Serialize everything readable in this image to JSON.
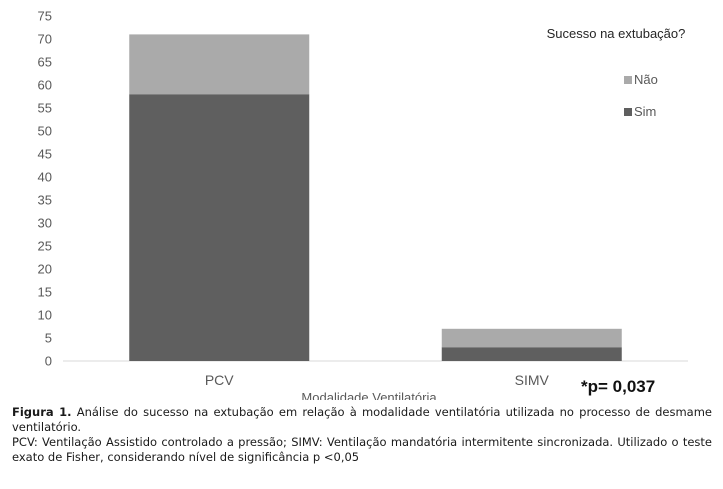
{
  "chart_data": {
    "type": "bar",
    "stacked": true,
    "categories": [
      "PCV",
      "SIMV"
    ],
    "series": [
      {
        "name": "Sim",
        "values": [
          58,
          3
        ],
        "color": "#5f5f5f"
      },
      {
        "name": "Não",
        "values": [
          13,
          4
        ],
        "color": "#aaaaaa"
      }
    ],
    "xlabel": "Modalidade Ventilatória",
    "ylabel": "",
    "ylim": [
      0,
      75
    ],
    "yticks": [
      0,
      5,
      10,
      15,
      20,
      25,
      30,
      35,
      40,
      45,
      50,
      55,
      60,
      65,
      70,
      75
    ],
    "grid": false,
    "legend": {
      "title": "Sucesso na extubação?",
      "position": "top-right",
      "order": [
        "Não",
        "Sim"
      ]
    },
    "annotation": "*p= 0,037"
  },
  "caption": {
    "figure_label": "Figura 1.",
    "line1": "Análise do sucesso na extubação em relação à modalidade ventilatória utilizada no processo de desmame ventilatório.",
    "line2": "PCV: Ventilação Assistido controlado a pressão; SIMV: Ventilação mandatória intermitente sincronizada. Utilizado o teste exato de Fisher, considerando nível de significância p <0,05"
  }
}
